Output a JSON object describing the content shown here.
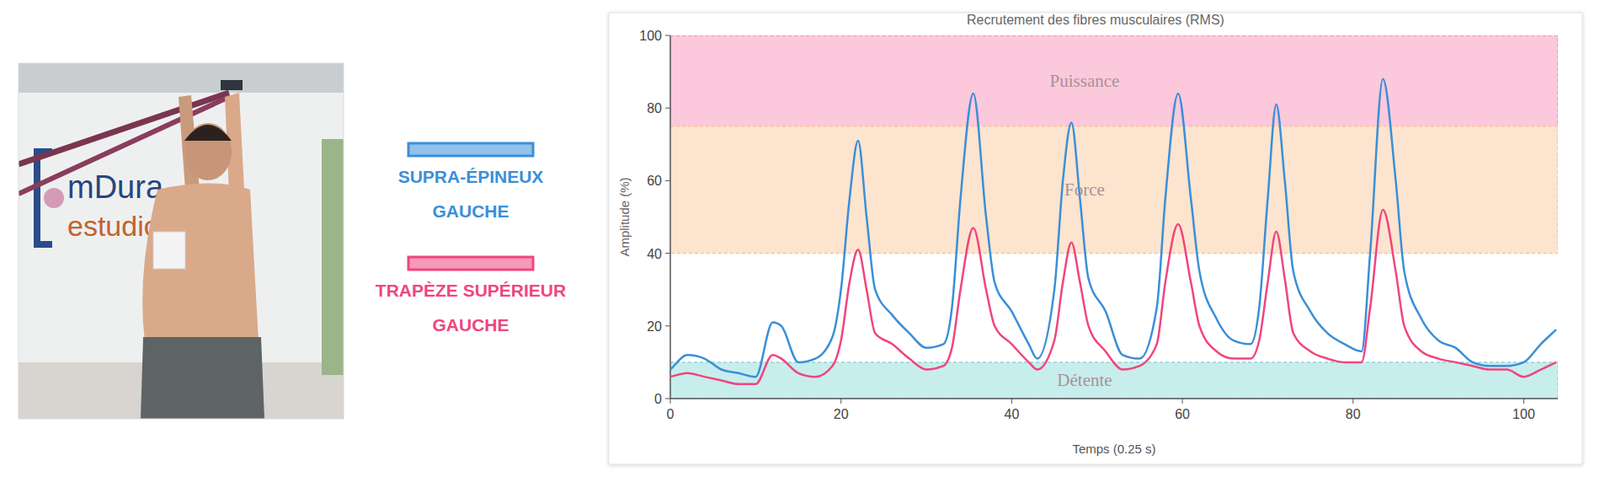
{
  "photo": {
    "texts": [
      "mDura",
      "estudio"
    ]
  },
  "chart_data": {
    "type": "line",
    "title": "Recrutement des fibres musculaires (RMS)",
    "x_label": "Temps (0.25 s)",
    "y_label": "Amplitude (%)",
    "x": [
      0,
      2,
      4,
      6,
      8,
      10,
      12,
      13,
      15,
      17,
      19,
      20,
      21,
      22,
      23,
      24,
      26,
      28,
      30,
      32,
      33,
      34,
      35.5,
      37,
      38,
      40,
      42,
      43,
      45,
      46,
      47,
      48,
      49,
      51,
      53,
      55,
      57,
      58,
      59.5,
      61,
      62,
      64,
      66,
      68,
      69,
      70,
      71,
      72,
      73,
      75,
      77,
      79,
      81,
      82,
      83.5,
      85,
      86,
      88,
      90,
      92,
      94,
      96,
      98,
      100,
      102,
      103.8
    ],
    "series": [
      {
        "name": "SUPRA-ÉPINEUX GAUCHE",
        "color": "#3a8fd8",
        "values": [
          8,
          12,
          11,
          8,
          7,
          6,
          21,
          20,
          10,
          11,
          17,
          30,
          55,
          71,
          50,
          30,
          23,
          18,
          14,
          15,
          25,
          55,
          84,
          50,
          32,
          24,
          15,
          11,
          30,
          60,
          76,
          55,
          33,
          24,
          12,
          11,
          25,
          55,
          84,
          55,
          35,
          22,
          16,
          15,
          25,
          55,
          81,
          60,
          35,
          24,
          18,
          15,
          13,
          40,
          88,
          60,
          35,
          22,
          16,
          14,
          10,
          9,
          9,
          10,
          15,
          19
        ]
      },
      {
        "name": "TRAPÈZE SUPÉRIEUR GAUCHE",
        "color": "#f0457f",
        "values": [
          6,
          7,
          6,
          5,
          4,
          4,
          12,
          11,
          7,
          6,
          9,
          16,
          32,
          41,
          30,
          18,
          15,
          11,
          8,
          9,
          14,
          30,
          47,
          30,
          20,
          15,
          10,
          8,
          16,
          32,
          43,
          32,
          20,
          13,
          8,
          9,
          15,
          32,
          48,
          32,
          20,
          13,
          11,
          11,
          16,
          32,
          46,
          33,
          18,
          13,
          11,
          10,
          10,
          25,
          52,
          35,
          20,
          13,
          11,
          10,
          9,
          8,
          8,
          6,
          8,
          10
        ]
      }
    ],
    "xlim": [
      0,
      104
    ],
    "ylim": [
      0,
      100
    ],
    "xticks": [
      0,
      20,
      40,
      60,
      80,
      100
    ],
    "yticks": [
      0,
      20,
      40,
      60,
      80,
      100
    ],
    "grid": false,
    "legend": "left",
    "bands": [
      {
        "label": "Puissance",
        "from": 75,
        "to": 100,
        "color": "#fcc8dc"
      },
      {
        "label": "Force",
        "from": 40,
        "to": 75,
        "color": "#fde4cf"
      },
      {
        "label": "Détente",
        "from": 0,
        "to": 10,
        "color": "#c8eded"
      }
    ]
  }
}
